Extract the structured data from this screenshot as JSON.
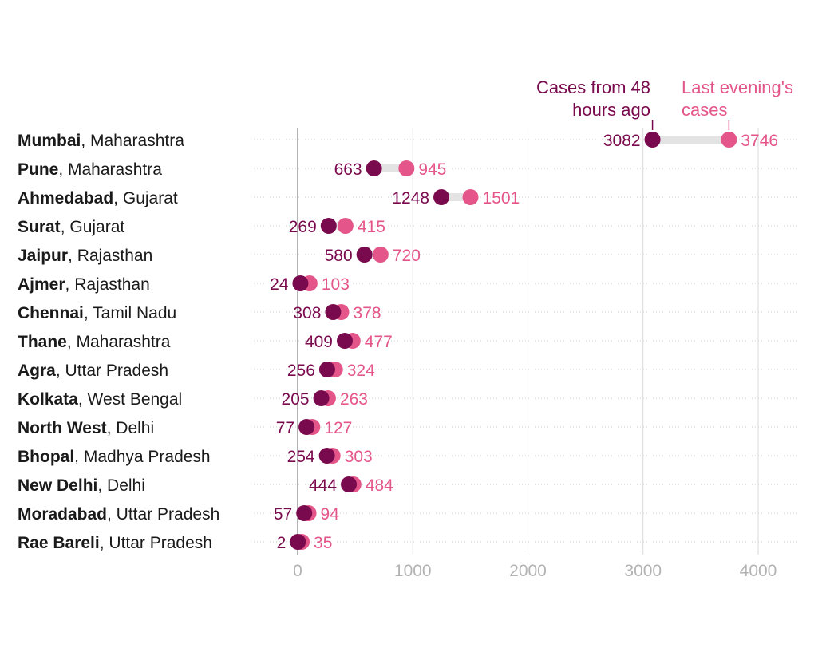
{
  "chart_data": {
    "type": "dumbbell",
    "legend": {
      "older_label_line1": "Cases from 48",
      "older_label_line2": "hours ago",
      "newer_label_line1": "Last evening's",
      "newer_label_line2": "cases"
    },
    "colors": {
      "older": "#7a0a4e",
      "newer": "#e4568a",
      "connector": "#e3e3e3",
      "gridline": "#d9d9d9",
      "zero_line": "#9a9a9a",
      "row_guide": "#cfcfcf",
      "tick_label": "#b3b3b3",
      "city_label": "#1a1a1a"
    },
    "xlim": [
      0,
      4000
    ],
    "xticks": [
      0,
      1000,
      2000,
      3000,
      4000
    ],
    "xtick_labels": [
      "0",
      "1000",
      "2000",
      "3000",
      "4000"
    ],
    "rows": [
      {
        "city": "Mumbai",
        "region": "Maharashtra",
        "before": 3082,
        "after": 3746
      },
      {
        "city": "Pune",
        "region": "Maharashtra",
        "before": 663,
        "after": 945
      },
      {
        "city": "Ahmedabad",
        "region": "Gujarat",
        "before": 1248,
        "after": 1501
      },
      {
        "city": "Surat",
        "region": "Gujarat",
        "before": 269,
        "after": 415
      },
      {
        "city": "Jaipur",
        "region": "Rajasthan",
        "before": 580,
        "after": 720
      },
      {
        "city": "Ajmer",
        "region": "Rajasthan",
        "before": 24,
        "after": 103
      },
      {
        "city": "Chennai",
        "region": "Tamil Nadu",
        "before": 308,
        "after": 378
      },
      {
        "city": "Thane",
        "region": "Maharashtra",
        "before": 409,
        "after": 477
      },
      {
        "city": "Agra",
        "region": "Uttar Pradesh",
        "before": 256,
        "after": 324
      },
      {
        "city": "Kolkata",
        "region": "West Bengal",
        "before": 205,
        "after": 263
      },
      {
        "city": "North West",
        "region": "Delhi",
        "before": 77,
        "after": 127
      },
      {
        "city": "Bhopal",
        "region": "Madhya Pradesh",
        "before": 254,
        "after": 303
      },
      {
        "city": "New Delhi",
        "region": "Delhi",
        "before": 444,
        "after": 484
      },
      {
        "city": "Moradabad",
        "region": "Uttar Pradesh",
        "before": 57,
        "after": 94
      },
      {
        "city": "Rae Bareli",
        "region": "Uttar Pradesh",
        "before": 2,
        "after": 35
      }
    ]
  }
}
